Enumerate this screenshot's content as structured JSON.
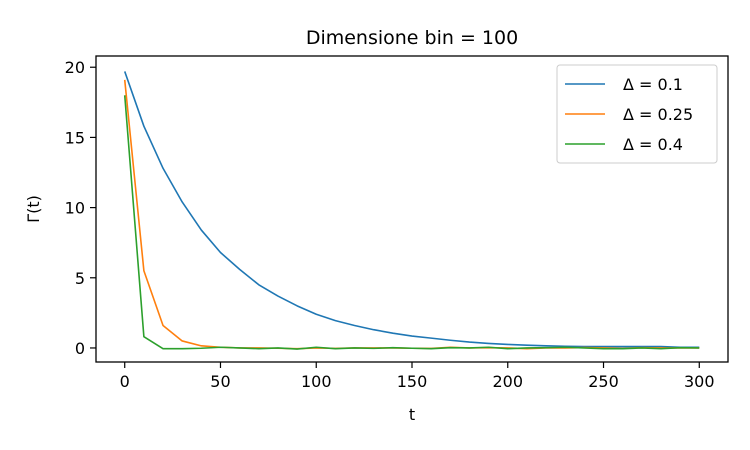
{
  "chart_data": {
    "type": "line",
    "title": "Dimensione bin = 100",
    "xlabel": "t",
    "ylabel": "Γ(t)",
    "xlim": [
      -15,
      315
    ],
    "ylim": [
      -1,
      20.8
    ],
    "xticks": [
      0,
      50,
      100,
      150,
      200,
      250,
      300
    ],
    "yticks": [
      0,
      5,
      10,
      15,
      20
    ],
    "grid": false,
    "legend_position": "top-right",
    "x": [
      0,
      10,
      20,
      30,
      40,
      50,
      60,
      70,
      80,
      90,
      100,
      110,
      120,
      130,
      140,
      150,
      160,
      170,
      180,
      190,
      200,
      210,
      220,
      230,
      240,
      250,
      260,
      270,
      280,
      290,
      300
    ],
    "series": [
      {
        "name": "Δ = 0.1",
        "color": "#1f77b4",
        "values": [
          19.7,
          15.8,
          12.8,
          10.4,
          8.4,
          6.8,
          5.6,
          4.5,
          3.7,
          3.0,
          2.4,
          1.95,
          1.6,
          1.3,
          1.05,
          0.85,
          0.7,
          0.55,
          0.42,
          0.32,
          0.25,
          0.2,
          0.15,
          0.12,
          0.1,
          0.1,
          0.1,
          0.1,
          0.1,
          0.05,
          0.05
        ]
      },
      {
        "name": "Δ = 0.25",
        "color": "#ff7f0e",
        "values": [
          19.1,
          5.5,
          1.6,
          0.5,
          0.15,
          0.05,
          0.0,
          0.0,
          -0.02,
          -0.05,
          0.0,
          -0.03,
          0.0,
          0.0,
          0.0,
          -0.02,
          -0.03,
          0.05,
          0.0,
          0.02,
          0.0,
          -0.05,
          0.0,
          0.0,
          0.03,
          0.0,
          -0.03,
          0.02,
          0.0,
          0.0,
          0.0
        ]
      },
      {
        "name": "Δ = 0.4",
        "color": "#2ca02c",
        "values": [
          18.0,
          0.8,
          -0.05,
          -0.05,
          -0.02,
          0.05,
          0.0,
          -0.05,
          0.0,
          -0.08,
          0.05,
          -0.05,
          0.0,
          -0.03,
          0.02,
          -0.02,
          -0.05,
          0.02,
          0.0,
          0.05,
          -0.05,
          0.0,
          0.02,
          0.05,
          0.0,
          -0.05,
          -0.05,
          0.0,
          -0.05,
          0.02,
          0.0
        ]
      }
    ]
  }
}
